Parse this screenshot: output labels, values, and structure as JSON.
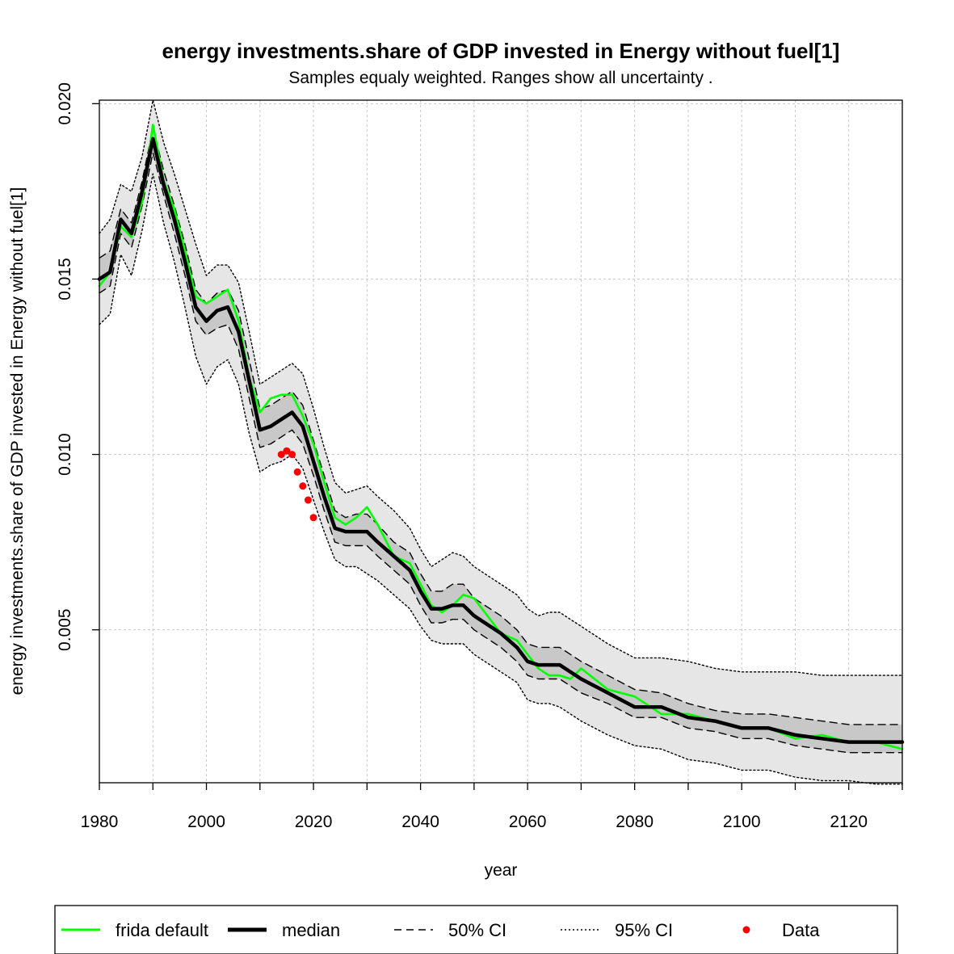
{
  "chart_data": {
    "type": "line",
    "title": "energy investments.share of GDP invested in Energy without fuel[1]",
    "subtitle": "Samples equaly weighted. Ranges show  all uncertainty .",
    "xlabel": "year",
    "ylabel": "energy investments.share of GDP invested in Energy without fuel[1]",
    "xlim": [
      1980,
      2130
    ],
    "ylim": [
      0.00064,
      0.0201
    ],
    "x_ticks": [
      1980,
      2000,
      2020,
      2040,
      2060,
      2080,
      2100,
      2120
    ],
    "x_tick_labels": [
      "1980",
      "2000",
      "2020",
      "2040",
      "2060",
      "2080",
      "2100",
      "2120"
    ],
    "y_ticks": [
      0.005,
      0.01,
      0.015,
      0.02
    ],
    "y_tick_labels": [
      "0.005",
      "0.010",
      "0.015",
      "0.020"
    ],
    "grid": true,
    "legend_position": "bottom",
    "colors": {
      "frida_default": "#00ff00",
      "median": "#000000",
      "data": "#ff0000",
      "band95": "#e6e6e6",
      "band50": "#c8c8c8",
      "grid": "#c8c8c8"
    },
    "legend": [
      {
        "key": "frida",
        "label": "frida default"
      },
      {
        "key": "median",
        "label": "median"
      },
      {
        "key": "ci50",
        "label": "50% CI"
      },
      {
        "key": "ci95",
        "label": "95% CI"
      },
      {
        "key": "data",
        "label": "Data"
      }
    ],
    "x": [
      1980,
      1982,
      1984,
      1986,
      1988,
      1990,
      1992,
      1994,
      1996,
      1998,
      2000,
      2002,
      2004,
      2006,
      2008,
      2010,
      2012,
      2014,
      2016,
      2018,
      2020,
      2022,
      2024,
      2026,
      2028,
      2030,
      2032,
      2035,
      2038,
      2040,
      2042,
      2044,
      2046,
      2048,
      2050,
      2052,
      2055,
      2058,
      2060,
      2062,
      2064,
      2066,
      2068,
      2070,
      2075,
      2080,
      2085,
      2090,
      2095,
      2100,
      2105,
      2110,
      2115,
      2120,
      2125,
      2130
    ],
    "series": [
      {
        "name": "frida default",
        "style": "solid-green",
        "values": [
          0.0148,
          0.0152,
          0.0165,
          0.0162,
          0.0172,
          0.0194,
          0.0178,
          0.017,
          0.0158,
          0.0145,
          0.0143,
          0.0145,
          0.0147,
          0.0138,
          0.0122,
          0.0112,
          0.0116,
          0.0117,
          0.0117,
          0.0111,
          0.0103,
          0.0092,
          0.0082,
          0.008,
          0.0082,
          0.0085,
          0.008,
          0.0071,
          0.0069,
          0.0063,
          0.0057,
          0.0055,
          0.0057,
          0.006,
          0.0059,
          0.0055,
          0.0049,
          0.0047,
          0.0043,
          0.0039,
          0.0037,
          0.0037,
          0.0036,
          0.0039,
          0.0033,
          0.0031,
          0.0026,
          0.0026,
          0.0024,
          0.0022,
          0.0022,
          0.0019,
          0.002,
          0.0018,
          0.0018,
          0.0016
        ]
      },
      {
        "name": "median",
        "style": "thick-black",
        "values": [
          0.015,
          0.0152,
          0.0167,
          0.0163,
          0.0175,
          0.019,
          0.0177,
          0.0167,
          0.0155,
          0.0142,
          0.0138,
          0.0141,
          0.0142,
          0.0135,
          0.0121,
          0.0107,
          0.0108,
          0.011,
          0.0112,
          0.0108,
          0.0098,
          0.0088,
          0.0079,
          0.0078,
          0.0078,
          0.0078,
          0.0075,
          0.0071,
          0.0067,
          0.0061,
          0.0056,
          0.0056,
          0.0057,
          0.0057,
          0.0054,
          0.0052,
          0.0049,
          0.0045,
          0.0041,
          0.004,
          0.004,
          0.004,
          0.0038,
          0.0036,
          0.0032,
          0.0028,
          0.0028,
          0.0025,
          0.0024,
          0.0022,
          0.0022,
          0.002,
          0.0019,
          0.0018,
          0.0018,
          0.0018
        ]
      },
      {
        "name": "50% CI upper",
        "style": "dashed",
        "values": [
          0.0156,
          0.0158,
          0.017,
          0.0166,
          0.0178,
          0.0193,
          0.0181,
          0.0171,
          0.016,
          0.0147,
          0.0143,
          0.0146,
          0.0147,
          0.0141,
          0.0127,
          0.0113,
          0.0114,
          0.0116,
          0.0118,
          0.0114,
          0.0104,
          0.0094,
          0.0084,
          0.0082,
          0.0083,
          0.0083,
          0.008,
          0.0075,
          0.0072,
          0.0066,
          0.0061,
          0.0061,
          0.0063,
          0.0063,
          0.0059,
          0.0057,
          0.0054,
          0.005,
          0.0046,
          0.0045,
          0.0045,
          0.0045,
          0.0043,
          0.0041,
          0.0037,
          0.0033,
          0.0032,
          0.0029,
          0.0027,
          0.0026,
          0.0026,
          0.0025,
          0.0024,
          0.0023,
          0.0023,
          0.0023
        ]
      },
      {
        "name": "50% CI lower",
        "style": "dashed",
        "values": [
          0.0146,
          0.0148,
          0.0163,
          0.0159,
          0.0171,
          0.0186,
          0.0174,
          0.0163,
          0.0151,
          0.0138,
          0.0134,
          0.0136,
          0.0137,
          0.013,
          0.0116,
          0.0102,
          0.0103,
          0.0105,
          0.0107,
          0.0103,
          0.0094,
          0.0084,
          0.0075,
          0.0074,
          0.0074,
          0.0074,
          0.0071,
          0.0067,
          0.0063,
          0.0057,
          0.0052,
          0.0052,
          0.0053,
          0.0053,
          0.005,
          0.0048,
          0.0045,
          0.0041,
          0.0037,
          0.0036,
          0.0036,
          0.0036,
          0.0034,
          0.0032,
          0.0029,
          0.0025,
          0.0025,
          0.0022,
          0.0021,
          0.0019,
          0.0019,
          0.0017,
          0.0016,
          0.0015,
          0.0015,
          0.0015
        ]
      },
      {
        "name": "95% CI upper",
        "style": "dotted",
        "values": [
          0.0163,
          0.0167,
          0.0177,
          0.0175,
          0.0185,
          0.0201,
          0.0189,
          0.018,
          0.017,
          0.016,
          0.0151,
          0.0154,
          0.0154,
          0.0149,
          0.0135,
          0.012,
          0.0122,
          0.0124,
          0.0126,
          0.0123,
          0.0113,
          0.0102,
          0.0092,
          0.0089,
          0.009,
          0.0091,
          0.0088,
          0.0084,
          0.0079,
          0.0073,
          0.0068,
          0.007,
          0.0072,
          0.0071,
          0.0068,
          0.0066,
          0.0063,
          0.006,
          0.0056,
          0.0054,
          0.0055,
          0.0055,
          0.0053,
          0.0051,
          0.0046,
          0.0042,
          0.0042,
          0.0041,
          0.0039,
          0.0038,
          0.0038,
          0.0038,
          0.0037,
          0.0037,
          0.0037,
          0.0037
        ]
      },
      {
        "name": "95% CI lower",
        "style": "dotted",
        "values": [
          0.0137,
          0.014,
          0.0157,
          0.0151,
          0.0164,
          0.018,
          0.0166,
          0.0155,
          0.0142,
          0.0128,
          0.012,
          0.0125,
          0.0127,
          0.012,
          0.0106,
          0.0095,
          0.0097,
          0.0098,
          0.01,
          0.0096,
          0.0087,
          0.0078,
          0.007,
          0.0068,
          0.0068,
          0.0066,
          0.0064,
          0.006,
          0.0056,
          0.0051,
          0.0047,
          0.0046,
          0.0046,
          0.0046,
          0.0043,
          0.0041,
          0.0038,
          0.0035,
          0.003,
          0.0029,
          0.0029,
          0.0028,
          0.0026,
          0.0024,
          0.002,
          0.0017,
          0.0016,
          0.0013,
          0.0012,
          0.001,
          0.001,
          0.0008,
          0.0007,
          0.0007,
          0.0006,
          0.0006
        ]
      }
    ],
    "data_points": {
      "name": "Data",
      "x": [
        2014,
        2015,
        2016,
        2017,
        2018,
        2019,
        2020
      ],
      "y": [
        0.01,
        0.0101,
        0.01,
        0.0095,
        0.0091,
        0.0087,
        0.0082
      ]
    }
  }
}
